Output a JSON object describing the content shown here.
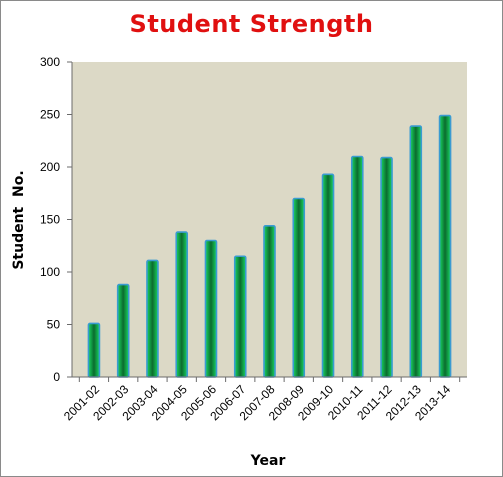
{
  "chart_data": {
    "type": "bar",
    "title": "Student Strength",
    "xlabel": "Year",
    "ylabel": "Student  No.",
    "categories": [
      "2001-02",
      "2002-03",
      "2003-04",
      "2004-05",
      "2005-06",
      "2006-07",
      "2007-08",
      "2008-09",
      "2009-10",
      "2010-11",
      "2011-12",
      "2012-13",
      "2013-14"
    ],
    "values": [
      51,
      88,
      111,
      138,
      130,
      115,
      144,
      170,
      193,
      210,
      209,
      239,
      249
    ],
    "ylim": [
      0,
      300
    ],
    "yticks": [
      "0",
      "50",
      "100",
      "150",
      "200",
      "250",
      "300"
    ],
    "grid": false,
    "legend": "none",
    "colors": {
      "plot_background": "#dcd9c6",
      "bar_edge": "#3a9bd1",
      "bar_light": "#19d45f",
      "bar_dark": "#0b6b2e",
      "title": "#e01010"
    }
  }
}
